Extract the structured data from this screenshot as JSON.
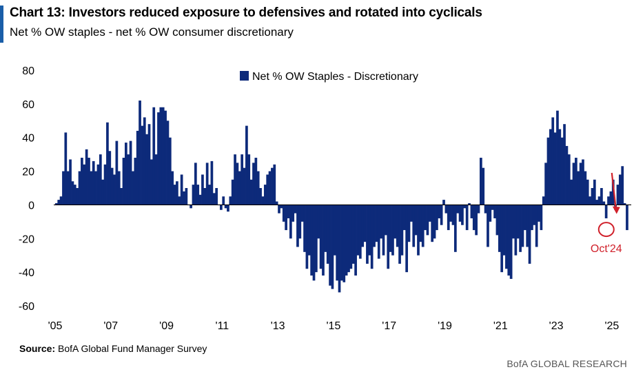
{
  "header": {
    "title": "Chart 13: Investors reduced exposure to defensives and rotated into cyclicals",
    "subtitle": "Net % OW staples - net % OW consumer discretionary"
  },
  "footer": {
    "source_label": "Source:",
    "source_text": "BofA Global Fund Manager Survey",
    "brand": "BofA GLOBAL RESEARCH"
  },
  "colors": {
    "bar": "#0d2a7a",
    "highlight": "#d0202a",
    "axis": "#000000"
  },
  "chart_data": {
    "type": "bar",
    "title": "Chart 13: Investors reduced exposure to defensives and rotated into cyclicals",
    "subtitle": "Net % OW staples - net % OW consumer discretionary",
    "legend": {
      "label": "Net % OW Staples - Discretionary",
      "position": "top-center"
    },
    "xlim": [
      2005.0,
      2025.3
    ],
    "ylim": [
      -60,
      80
    ],
    "y_ticks": [
      80,
      60,
      40,
      20,
      0,
      -20,
      -40,
      -60
    ],
    "x_ticks": [
      {
        "label": "'05",
        "x": 2005
      },
      {
        "label": "'07",
        "x": 2007
      },
      {
        "label": "'09",
        "x": 2009
      },
      {
        "label": "'11",
        "x": 2011
      },
      {
        "label": "'13",
        "x": 2013
      },
      {
        "label": "'15",
        "x": 2015
      },
      {
        "label": "'17",
        "x": 2017
      },
      {
        "label": "'19",
        "x": 2019
      },
      {
        "label": "'21",
        "x": 2021
      },
      {
        "label": "'23",
        "x": 2023
      },
      {
        "label": "'25",
        "x": 2025
      }
    ],
    "grid": false,
    "series": [
      {
        "name": "Net % OW Staples - Discretionary",
        "frequency": "monthly",
        "start": "2005-01",
        "values": [
          1,
          3,
          5,
          20,
          43,
          20,
          27,
          14,
          12,
          10,
          20,
          28,
          24,
          33,
          28,
          20,
          26,
          20,
          24,
          30,
          15,
          24,
          49,
          32,
          22,
          18,
          38,
          20,
          10,
          28,
          37,
          30,
          38,
          20,
          28,
          44,
          62,
          47,
          52,
          42,
          48,
          27,
          58,
          30,
          55,
          58,
          58,
          56,
          50,
          40,
          20,
          12,
          14,
          5,
          18,
          8,
          10,
          0,
          -2,
          12,
          25,
          12,
          6,
          18,
          10,
          25,
          12,
          26,
          7,
          10,
          0,
          -3,
          5,
          -2,
          -4,
          5,
          15,
          30,
          25,
          20,
          30,
          22,
          47,
          30,
          15,
          25,
          28,
          20,
          10,
          5,
          12,
          18,
          20,
          22,
          24,
          2,
          -5,
          -2,
          -10,
          -15,
          -8,
          -20,
          -10,
          -5,
          -25,
          -20,
          -10,
          -28,
          -38,
          -30,
          -42,
          -45,
          -40,
          -20,
          -38,
          -42,
          -28,
          -35,
          -48,
          -50,
          -30,
          -45,
          -52,
          -45,
          -46,
          -42,
          -40,
          -38,
          -35,
          -42,
          -30,
          -32,
          -25,
          -22,
          -35,
          -30,
          -38,
          -25,
          -22,
          -32,
          -20,
          -30,
          -18,
          -38,
          -28,
          -30,
          -20,
          -25,
          -35,
          -30,
          -15,
          -40,
          -22,
          -10,
          -25,
          -18,
          -30,
          -22,
          -25,
          -15,
          -18,
          -10,
          -22,
          -20,
          -15,
          -8,
          -12,
          3,
          -5,
          -15,
          -10,
          -12,
          -28,
          -5,
          -10,
          -12,
          -2,
          -15,
          1,
          -8,
          -15,
          -18,
          -5,
          28,
          22,
          -5,
          -25,
          -10,
          -3,
          -8,
          -18,
          -28,
          -40,
          -30,
          -38,
          -42,
          -44,
          -20,
          -30,
          -20,
          -28,
          -25,
          -15,
          -25,
          -35,
          -15,
          -12,
          -25,
          -10,
          -15,
          5,
          25,
          40,
          45,
          52,
          43,
          56,
          45,
          40,
          48,
          35,
          30,
          15,
          25,
          28,
          20,
          25,
          27,
          20,
          15,
          5,
          10,
          15,
          3,
          5,
          10,
          2,
          -8,
          5,
          8,
          15,
          -3,
          12,
          18,
          23,
          1,
          -15
        ]
      }
    ],
    "annotation": {
      "label": "Oct'24",
      "x": 2024.75,
      "y": -15,
      "arrow_from_y": 19,
      "arrow_to_y": -5
    }
  }
}
